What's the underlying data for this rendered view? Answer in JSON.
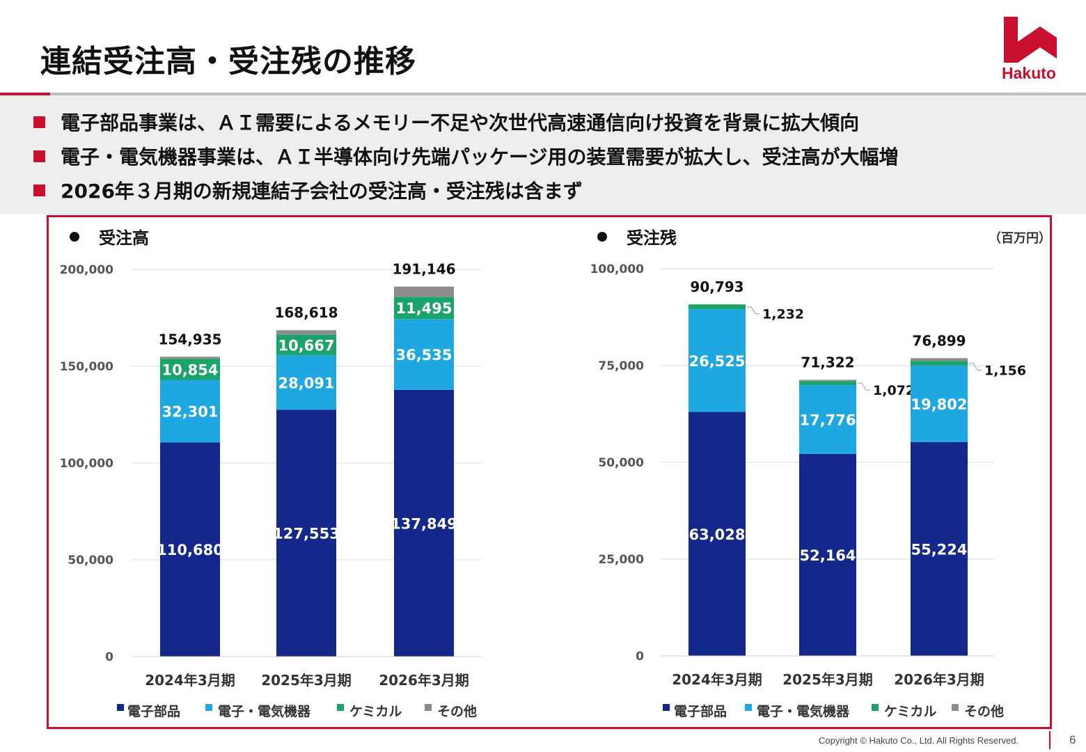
{
  "title": "連結受注高・受注残の推移",
  "logo": {
    "text": "Hakuto",
    "color": "#c8102e"
  },
  "bullets": [
    "電子部品事業は、ＡＩ需要によるメモリー不足や次世代高速通信向け投資を背景に拡大傾向",
    "電子・電気機器事業は、ＡＩ半導体向け先端パッケージ用の装置需要が拡大し、受注高が大幅増",
    "2026年３月期の新規連結子会社の受注高・受注残は含まず"
  ],
  "unit_label": "（百万円）",
  "colors": {
    "accent": "#c8102e",
    "電子部品": "#13288a",
    "電子・電気機器": "#1ea7e1",
    "ケミカル": "#1aa46a",
    "その他": "#8c8c8c"
  },
  "chart_data": [
    {
      "type": "bar",
      "stacked": true,
      "title": "受注高",
      "categories": [
        "2024年3月期",
        "2025年3月期",
        "2026年3月期"
      ],
      "ylim": [
        0,
        200000
      ],
      "yticks": [
        0,
        50000,
        100000,
        150000,
        200000
      ],
      "ytick_labels": [
        "0",
        "50,000",
        "100,000",
        "150,000",
        "200,000"
      ],
      "grid": true,
      "legend": "bottom",
      "series": [
        {
          "name": "電子部品",
          "values": [
            110680,
            127553,
            137849
          ],
          "labels": [
            "110,680",
            "127,553",
            "137,849"
          ]
        },
        {
          "name": "電子・電気機器",
          "values": [
            32301,
            28091,
            36535
          ],
          "labels": [
            "32,301",
            "28,091",
            "36,535"
          ]
        },
        {
          "name": "ケミカル",
          "values": [
            10854,
            10667,
            11495
          ],
          "labels": [
            "10,854",
            "10,667",
            "11,495"
          ]
        },
        {
          "name": "その他",
          "values": [
            1100,
            2307,
            5267
          ]
        }
      ],
      "totals": [
        154935,
        168618,
        191146
      ],
      "total_labels": [
        "154,935",
        "168,618",
        "191,146"
      ]
    },
    {
      "type": "bar",
      "stacked": true,
      "title": "受注残",
      "categories": [
        "2024年3月期",
        "2025年3月期",
        "2026年3月期"
      ],
      "ylim": [
        0,
        100000
      ],
      "yticks": [
        0,
        25000,
        50000,
        75000,
        100000
      ],
      "ytick_labels": [
        "0",
        "25,000",
        "50,000",
        "75,000",
        "100,000"
      ],
      "grid": true,
      "legend": "bottom",
      "series": [
        {
          "name": "電子部品",
          "values": [
            63028,
            52164,
            55224
          ],
          "labels": [
            "63,028",
            "52,164",
            "55,224"
          ]
        },
        {
          "name": "電子・電気機器",
          "values": [
            26525,
            17776,
            19802
          ],
          "labels": [
            "26,525",
            "17,776",
            "19,802"
          ]
        },
        {
          "name": "ケミカル",
          "values": [
            1232,
            1072,
            1156
          ],
          "callouts": [
            "1,232",
            "1,072",
            "1,156"
          ]
        },
        {
          "name": "その他",
          "values": [
            8,
            310,
            717
          ]
        }
      ],
      "totals": [
        90793,
        71322,
        76899
      ],
      "total_labels": [
        "90,793",
        "71,322",
        "76,899"
      ]
    }
  ],
  "footer": {
    "copyright": "Copyright © Hakuto Co., Ltd. All Rights Reserved.",
    "page": "6"
  }
}
